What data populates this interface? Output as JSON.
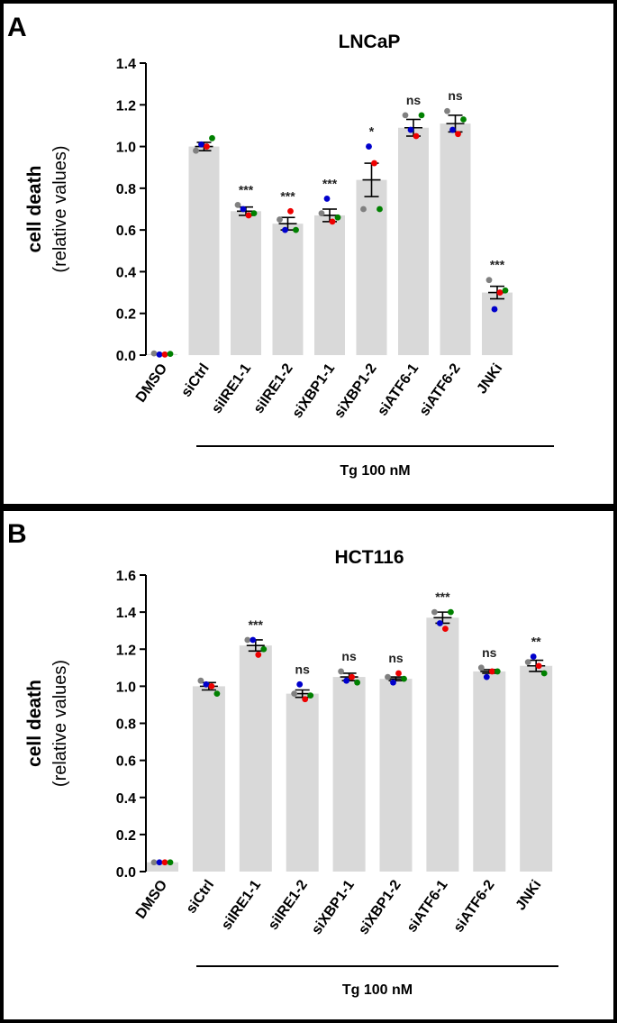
{
  "colors": {
    "bar": "#d9d9d9",
    "replicates": [
      "#808080",
      "#0000cc",
      "#ee0000",
      "#008000"
    ]
  },
  "chart_data": [
    {
      "panel": "A",
      "type": "bar",
      "title": "LNCaP",
      "ylabel": "cell death",
      "ylabel_sub": "(relative values)",
      "xlabel": "",
      "ylim": [
        0,
        1.4
      ],
      "yticks": [
        "0.0",
        "0.2",
        "0.4",
        "0.6",
        "0.8",
        "1.0",
        "1.2",
        "1.4"
      ],
      "categories": [
        "DMSO",
        "siCtrl",
        "siIRE1-1",
        "siIRE1-2",
        "siXBP1-1",
        "siXBP1-2",
        "siATF6-1",
        "siATF6-2",
        "JNKi"
      ],
      "values": [
        0.005,
        1.0,
        0.69,
        0.63,
        0.67,
        0.84,
        1.09,
        1.11,
        0.3
      ],
      "sem": [
        0.003,
        0.02,
        0.02,
        0.03,
        0.03,
        0.08,
        0.04,
        0.04,
        0.03
      ],
      "significance": [
        "",
        "",
        "***",
        "***",
        "***",
        "*",
        "ns",
        "ns",
        "***"
      ],
      "replicates": [
        {
          "gray": 0.008,
          "blue": 0.003,
          "red": 0.003,
          "green": 0.006
        },
        {
          "gray": 0.98,
          "blue": 1.01,
          "red": 1.0,
          "green": 1.04
        },
        {
          "gray": 0.72,
          "blue": 0.7,
          "red": 0.67,
          "green": 0.68
        },
        {
          "gray": 0.65,
          "blue": 0.6,
          "red": 0.69,
          "green": 0.6
        },
        {
          "gray": 0.68,
          "blue": 0.75,
          "red": 0.64,
          "green": 0.66
        },
        {
          "gray": 0.7,
          "blue": 1.0,
          "red": 0.92,
          "green": 0.7
        },
        {
          "gray": 1.15,
          "blue": 1.08,
          "red": 1.05,
          "green": 1.15
        },
        {
          "gray": 1.17,
          "blue": 1.08,
          "red": 1.06,
          "green": 1.13
        },
        {
          "gray": 0.36,
          "blue": 0.22,
          "red": 0.3,
          "green": 0.31
        }
      ],
      "bracket_label": "Tg 100 nM"
    },
    {
      "panel": "B",
      "type": "bar",
      "title": "HCT116",
      "ylabel": "cell death",
      "ylabel_sub": "(relative values)",
      "xlabel": "",
      "ylim": [
        0,
        1.6
      ],
      "yticks": [
        "0.0",
        "0.2",
        "0.4",
        "0.6",
        "0.8",
        "1.0",
        "1.2",
        "1.4",
        "1.6"
      ],
      "categories": [
        "DMSO",
        "siCtrl",
        "siIRE1-1",
        "siIRE1-2",
        "siXBP1-1",
        "siXBP1-2",
        "siATF6-1",
        "siATF6-2",
        "JNKi"
      ],
      "values": [
        0.05,
        1.0,
        1.22,
        0.96,
        1.05,
        1.04,
        1.37,
        1.08,
        1.11
      ],
      "sem": [
        0.002,
        0.02,
        0.03,
        0.02,
        0.02,
        0.01,
        0.03,
        0.01,
        0.03
      ],
      "significance": [
        "",
        "",
        "***",
        "ns",
        "ns",
        "ns",
        "***",
        "ns",
        "**"
      ],
      "replicates": [
        {
          "gray": 0.05,
          "blue": 0.05,
          "red": 0.05,
          "green": 0.05
        },
        {
          "gray": 1.03,
          "blue": 1.01,
          "red": 1.0,
          "green": 0.96
        },
        {
          "gray": 1.25,
          "blue": 1.25,
          "red": 1.17,
          "green": 1.2
        },
        {
          "gray": 0.96,
          "blue": 1.01,
          "red": 0.93,
          "green": 0.95
        },
        {
          "gray": 1.08,
          "blue": 1.03,
          "red": 1.05,
          "green": 1.02
        },
        {
          "gray": 1.05,
          "blue": 1.02,
          "red": 1.07,
          "green": 1.04
        },
        {
          "gray": 1.4,
          "blue": 1.34,
          "red": 1.31,
          "green": 1.4
        },
        {
          "gray": 1.1,
          "blue": 1.05,
          "red": 1.08,
          "green": 1.08
        },
        {
          "gray": 1.13,
          "blue": 1.16,
          "red": 1.11,
          "green": 1.07
        }
      ],
      "bracket_label": "Tg 100 nM"
    }
  ]
}
